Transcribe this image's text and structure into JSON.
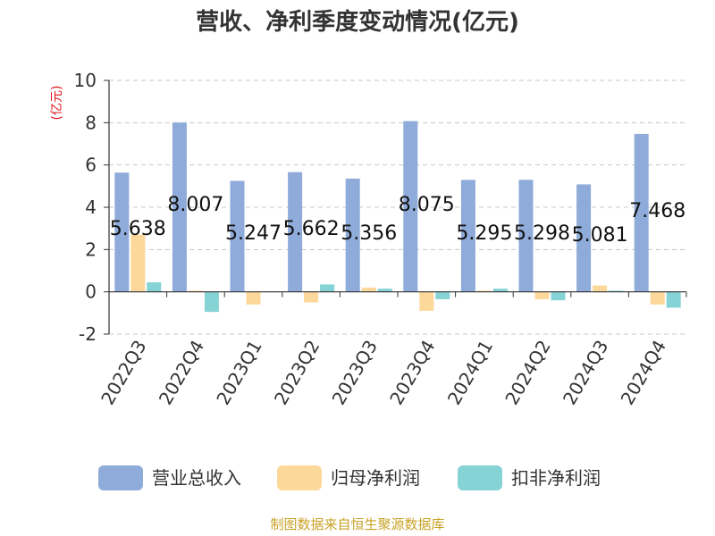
{
  "chart_data": {
    "type": "bar",
    "title": "营收、净利季度变动情况(亿元)",
    "ylabel": "(亿元)",
    "xlabel": "",
    "ylim": [
      -2,
      10
    ],
    "yticks": [
      -2,
      0,
      2,
      4,
      6,
      8,
      10
    ],
    "grid": true,
    "legend_position": "bottom",
    "categories": [
      "2022Q3",
      "2022Q4",
      "2023Q1",
      "2023Q2",
      "2023Q3",
      "2023Q4",
      "2024Q1",
      "2024Q2",
      "2024Q3",
      "2024Q4"
    ],
    "series": [
      {
        "name": "营业总收入",
        "color": "#8eabd9",
        "values": [
          5.638,
          8.007,
          5.247,
          5.662,
          5.356,
          8.075,
          5.295,
          5.298,
          5.081,
          7.468
        ],
        "labels": [
          "5.638",
          "8.007",
          "5.247",
          "5.662",
          "5.356",
          "8.075",
          "5.295",
          "5.298",
          "5.081",
          "7.468"
        ]
      },
      {
        "name": "归母净利润",
        "color": "#fdd89b",
        "values": [
          2.7,
          0.05,
          -0.6,
          -0.5,
          0.2,
          -0.9,
          0.05,
          -0.35,
          0.3,
          -0.6
        ]
      },
      {
        "name": "扣非净利润",
        "color": "#86d3d6",
        "values": [
          0.45,
          -0.95,
          0.0,
          0.35,
          0.15,
          -0.35,
          0.15,
          -0.4,
          0.05,
          -0.75
        ]
      }
    ]
  },
  "source": "制图数据来自恒生聚源数据库"
}
